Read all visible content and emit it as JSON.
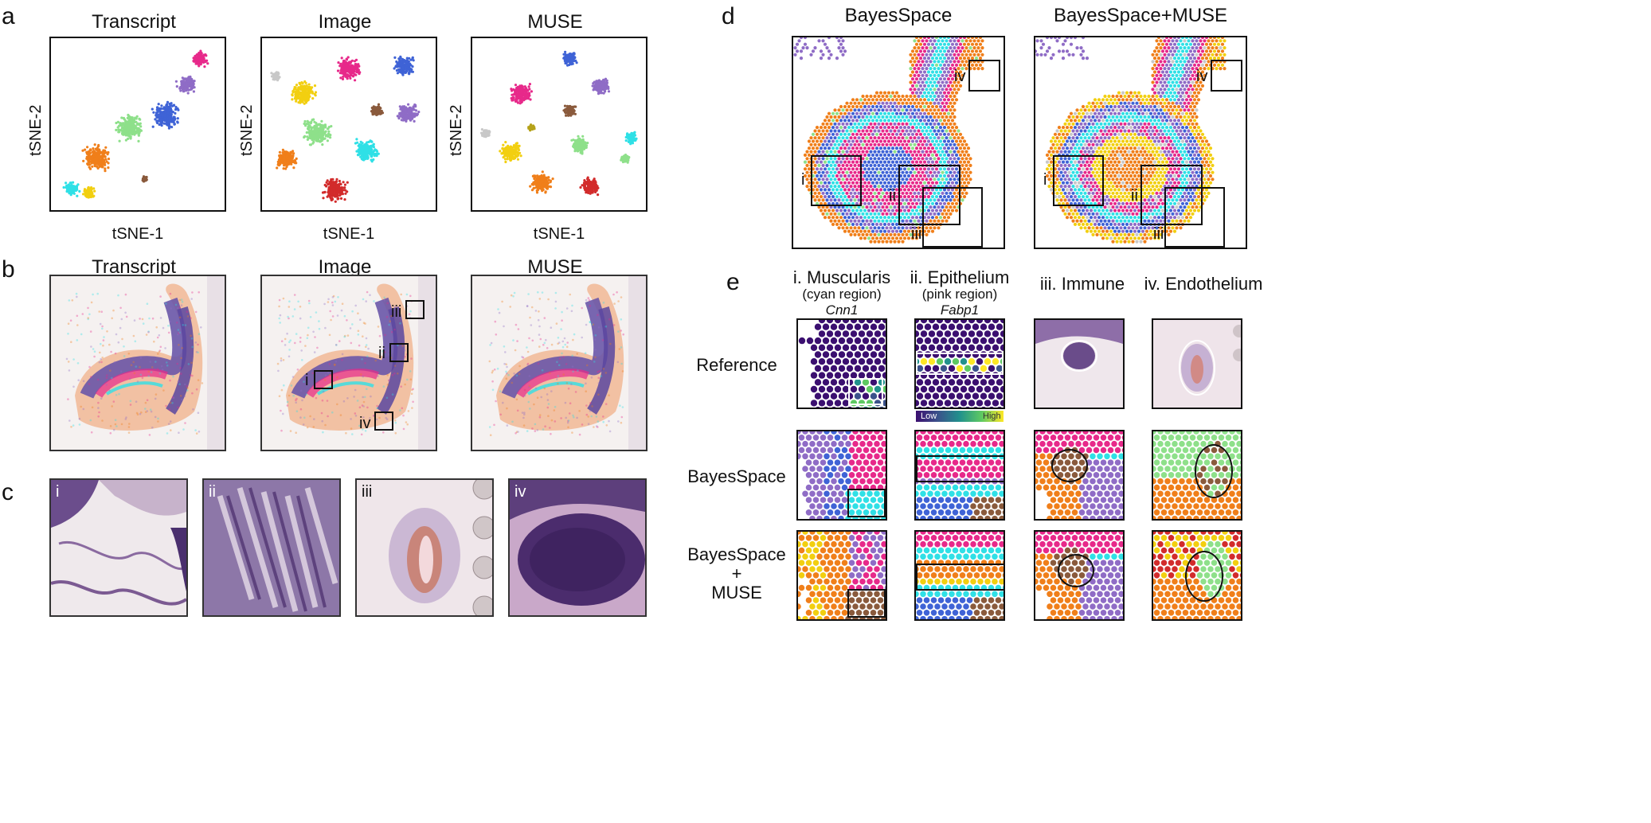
{
  "panel_a": {
    "letter": "a",
    "titles": [
      "Transcript",
      "Image",
      "MUSE"
    ],
    "xlabel": "tSNE-1",
    "ylabel": "tSNE-2"
  },
  "panel_b": {
    "letter": "b",
    "titles": [
      "Transcript",
      "Image",
      "MUSE"
    ],
    "roi_labels": [
      "i",
      "ii",
      "iii",
      "iv"
    ]
  },
  "panel_c": {
    "letter": "c",
    "labels": [
      "i",
      "ii",
      "iii",
      "iv"
    ]
  },
  "panel_d": {
    "letter": "d",
    "titles": [
      "BayesSpace",
      "BayesSpace+MUSE"
    ],
    "roi_labels": [
      "i",
      "ii",
      "iii",
      "iv"
    ]
  },
  "panel_e": {
    "letter": "e",
    "columns": [
      {
        "title": "i. Muscularis",
        "sub": "(cyan region)",
        "gene": "Cnn1"
      },
      {
        "title": "ii. Epithelium",
        "sub": "(pink region)",
        "gene": "Fabp1"
      },
      {
        "title": "iii. Immune",
        "sub": "",
        "gene": ""
      },
      {
        "title": "iv. Endothelium",
        "sub": "",
        "gene": ""
      }
    ],
    "rows": [
      "Reference",
      "BayesSpace",
      "BayesSpace\n+\nMUSE"
    ],
    "row_lines": {
      "r3a": "BayesSpace",
      "r3b": "+",
      "r3c": "MUSE"
    },
    "colorbar": {
      "low": "Low",
      "high": "High"
    }
  },
  "palette": {
    "pink": "#e7298a",
    "purple": "#8f6cc6",
    "blue": "#3f63d6",
    "green": "#8ee08a",
    "orange": "#f07f1a",
    "cyan": "#2fe0e6",
    "yellow": "#f2cf10",
    "brown": "#8a5a3c",
    "red": "#d22b2b",
    "gray": "#c8c8c8",
    "olive": "#b5a21a",
    "muscle": "#c9a2d9"
  }
}
